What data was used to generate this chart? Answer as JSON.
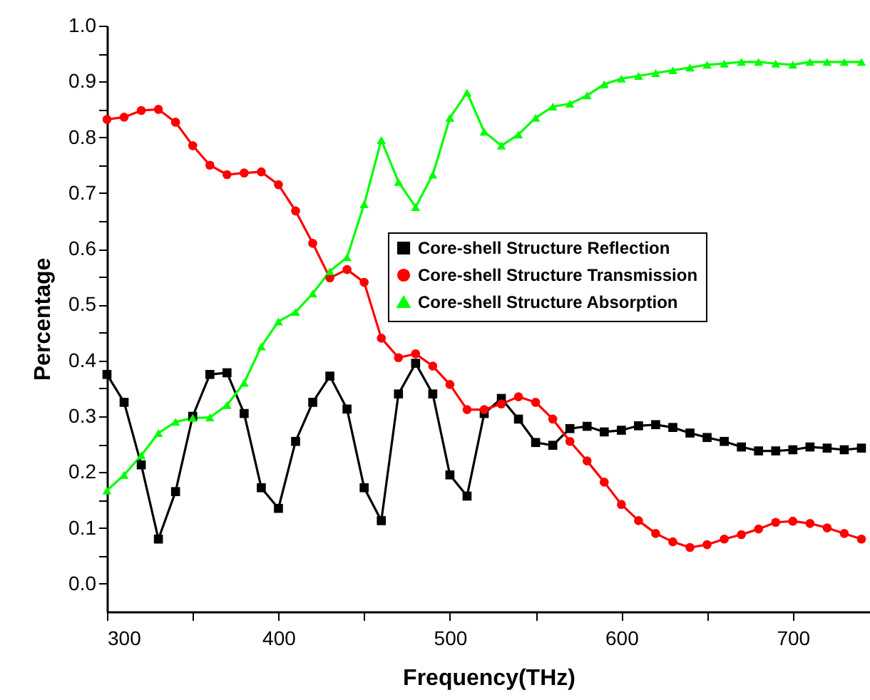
{
  "chart_data": {
    "type": "line",
    "xlabel": "Frequency(THz)",
    "ylabel": "Percentage",
    "x": [
      300,
      310,
      320,
      330,
      340,
      350,
      360,
      370,
      380,
      390,
      400,
      410,
      420,
      430,
      440,
      450,
      460,
      470,
      480,
      490,
      500,
      510,
      520,
      530,
      540,
      550,
      560,
      570,
      580,
      590,
      600,
      610,
      620,
      630,
      640,
      650,
      660,
      670,
      680,
      690,
      700,
      710,
      720,
      730,
      740
    ],
    "series": [
      {
        "name": "Core-shell Structure Reflection",
        "color": "#000000",
        "marker": "square",
        "values": [
          0.375,
          0.325,
          0.213,
          0.08,
          0.165,
          0.3,
          0.375,
          0.378,
          0.305,
          0.172,
          0.135,
          0.255,
          0.325,
          0.372,
          0.313,
          0.172,
          0.113,
          0.34,
          0.395,
          0.34,
          0.195,
          0.157,
          0.305,
          0.332,
          0.295,
          0.253,
          0.248,
          0.278,
          0.282,
          0.272,
          0.275,
          0.283,
          0.285,
          0.28,
          0.27,
          0.262,
          0.255,
          0.245,
          0.238,
          0.238,
          0.24,
          0.245,
          0.243,
          0.24,
          0.243
        ]
      },
      {
        "name": "Core-shell Structure Transmission",
        "color": "#ff0000",
        "marker": "circle",
        "values": [
          0.832,
          0.836,
          0.848,
          0.85,
          0.827,
          0.785,
          0.75,
          0.733,
          0.736,
          0.738,
          0.715,
          0.668,
          0.61,
          0.548,
          0.563,
          0.54,
          0.44,
          0.405,
          0.412,
          0.39,
          0.357,
          0.312,
          0.312,
          0.322,
          0.335,
          0.325,
          0.295,
          0.255,
          0.22,
          0.182,
          0.142,
          0.113,
          0.09,
          0.075,
          0.065,
          0.07,
          0.08,
          0.088,
          0.098,
          0.11,
          0.112,
          0.108,
          0.1,
          0.09,
          0.08
        ]
      },
      {
        "name": "Core-shell Structure Absorption",
        "color": "#00ff00",
        "marker": "triangle",
        "values": [
          0.167,
          0.195,
          0.23,
          0.27,
          0.29,
          0.297,
          0.298,
          0.32,
          0.36,
          0.425,
          0.47,
          0.487,
          0.52,
          0.56,
          0.585,
          0.68,
          0.795,
          0.72,
          0.675,
          0.733,
          0.835,
          0.88,
          0.81,
          0.785,
          0.805,
          0.835,
          0.855,
          0.86,
          0.875,
          0.895,
          0.905,
          0.91,
          0.915,
          0.92,
          0.925,
          0.93,
          0.932,
          0.935,
          0.935,
          0.932,
          0.93,
          0.935,
          0.935,
          0.935,
          0.935
        ]
      }
    ],
    "xlim": [
      300,
      745
    ],
    "xticks": [
      300,
      {
        "value": 350,
        "label": null
      },
      400,
      {
        "value": 450,
        "label": null
      },
      500,
      {
        "value": 550,
        "label": null
      },
      600,
      {
        "value": 650,
        "label": null
      },
      700
    ],
    "ylim": [
      -0.05,
      1.0
    ],
    "yticks": [
      {
        "value": 0,
        "label": "0.0"
      },
      {
        "value": 0.05,
        "label": null
      },
      {
        "value": 0.1,
        "label": "0.1"
      },
      {
        "value": 0.15,
        "label": null
      },
      {
        "value": 0.2,
        "label": "0.2"
      },
      {
        "value": 0.25,
        "label": null
      },
      {
        "value": 0.3,
        "label": "0.3"
      },
      {
        "value": 0.35,
        "label": null
      },
      {
        "value": 0.4,
        "label": "0.4"
      },
      {
        "value": 0.45,
        "label": null
      },
      {
        "value": 0.5,
        "label": "0.5"
      },
      {
        "value": 0.55,
        "label": null
      },
      {
        "value": 0.6,
        "label": "0.6"
      },
      {
        "value": 0.65,
        "label": null
      },
      {
        "value": 0.7,
        "label": "0.7"
      },
      {
        "value": 0.75,
        "label": null
      },
      {
        "value": 0.8,
        "label": "0.8"
      },
      {
        "value": 0.85,
        "label": null
      },
      {
        "value": 0.9,
        "label": "0.9"
      },
      {
        "value": 0.95,
        "label": null
      },
      {
        "value": 1.0,
        "label": "1.0"
      }
    ],
    "legend": "right",
    "grid": false,
    "line_style": "solid"
  }
}
